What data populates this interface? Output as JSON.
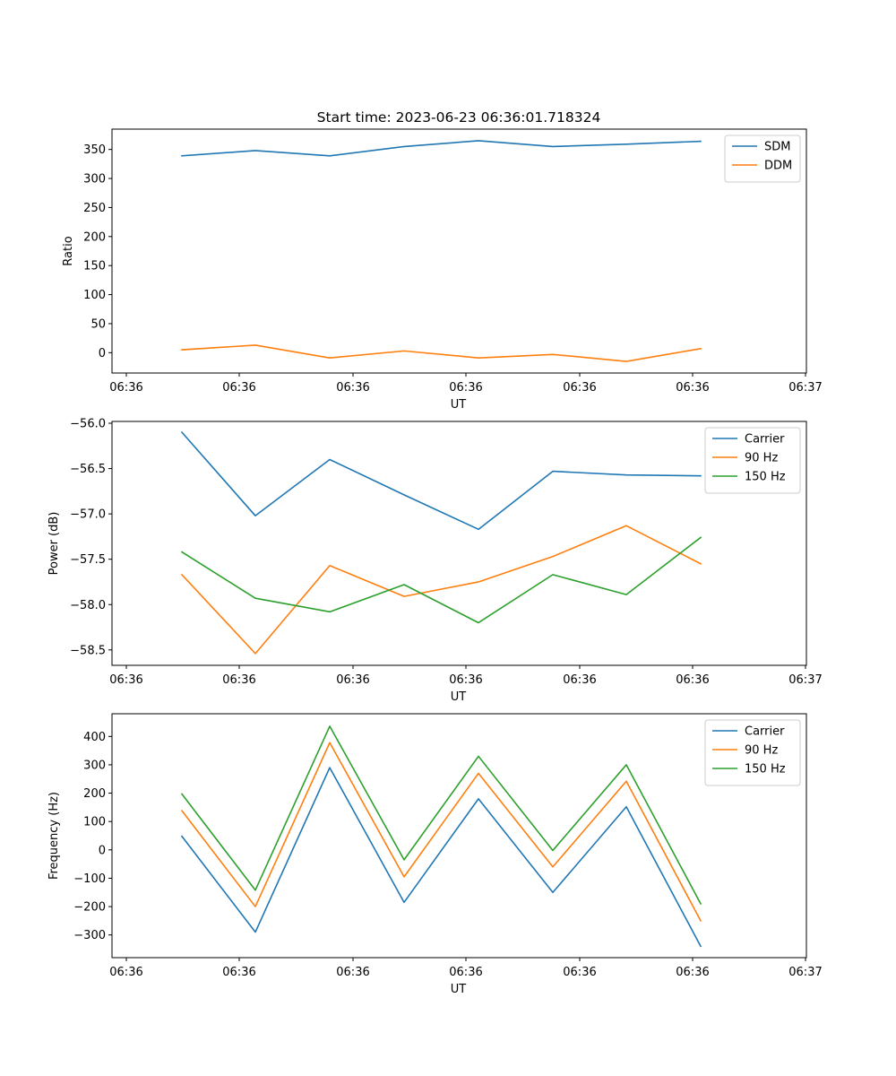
{
  "title": "Start time: 2023-06-23 06:36:01.718324",
  "chart_data": [
    {
      "type": "line",
      "ylabel": "Ratio",
      "xlabel": "UT",
      "x_tick_labels": [
        "06:36",
        "06:36",
        "06:36",
        "06:36",
        "06:36",
        "06:36",
        "06:37"
      ],
      "ylim": [
        -35,
        385
      ],
      "y_ticks": [
        0,
        50,
        100,
        150,
        200,
        250,
        300,
        350
      ],
      "legend": "top-right",
      "series": [
        {
          "name": "SDM",
          "color": "#1f77b4",
          "values": [
            339,
            348,
            339,
            355,
            365,
            355,
            359,
            364
          ]
        },
        {
          "name": "DDM",
          "color": "#ff7f0e",
          "values": [
            5,
            13,
            -9,
            3,
            -9,
            -3,
            -15,
            7
          ]
        }
      ]
    },
    {
      "type": "line",
      "ylabel": "Power (dB)",
      "xlabel": "UT",
      "x_tick_labels": [
        "06:36",
        "06:36",
        "06:36",
        "06:36",
        "06:36",
        "06:36",
        "06:37"
      ],
      "ylim": [
        -58.67,
        -55.98
      ],
      "y_ticks": [
        -58.5,
        -58.0,
        -57.5,
        -57.0,
        -56.5,
        -56.0
      ],
      "y_tick_labels": [
        "−58.5",
        "−58.0",
        "−57.5",
        "−57.0",
        "−56.5",
        "−56.0"
      ],
      "legend": "top-right",
      "series": [
        {
          "name": "Carrier",
          "color": "#1f77b4",
          "values": [
            -56.1,
            -57.02,
            -56.4,
            -56.79,
            -57.17,
            -56.53,
            -56.57,
            -56.58
          ]
        },
        {
          "name": "90 Hz",
          "color": "#ff7f0e",
          "values": [
            -57.67,
            -58.54,
            -57.57,
            -57.91,
            -57.75,
            -57.47,
            -57.13,
            -57.55
          ]
        },
        {
          "name": "150 Hz",
          "color": "#2ca02c",
          "values": [
            -57.42,
            -57.93,
            -58.08,
            -57.78,
            -58.2,
            -57.67,
            -57.89,
            -57.26
          ]
        }
      ]
    },
    {
      "type": "line",
      "ylabel": "Frequency (Hz)",
      "xlabel": "UT",
      "x_tick_labels": [
        "06:36",
        "06:36",
        "06:36",
        "06:36",
        "06:36",
        "06:36",
        "06:37"
      ],
      "ylim": [
        -380,
        480
      ],
      "y_ticks": [
        -300,
        -200,
        -100,
        0,
        100,
        200,
        300,
        400
      ],
      "y_tick_labels": [
        "−300",
        "−200",
        "−100",
        "0",
        "100",
        "200",
        "300",
        "400"
      ],
      "legend": "top-right",
      "series": [
        {
          "name": "Carrier",
          "color": "#1f77b4",
          "values": [
            48,
            -290,
            290,
            -185,
            180,
            -150,
            152,
            -340
          ]
        },
        {
          "name": "90 Hz",
          "color": "#ff7f0e",
          "values": [
            138,
            -200,
            378,
            -95,
            270,
            -60,
            242,
            -250
          ]
        },
        {
          "name": "150 Hz",
          "color": "#2ca02c",
          "values": [
            197,
            -142,
            436,
            -35,
            330,
            -2,
            300,
            -190
          ]
        }
      ]
    }
  ]
}
